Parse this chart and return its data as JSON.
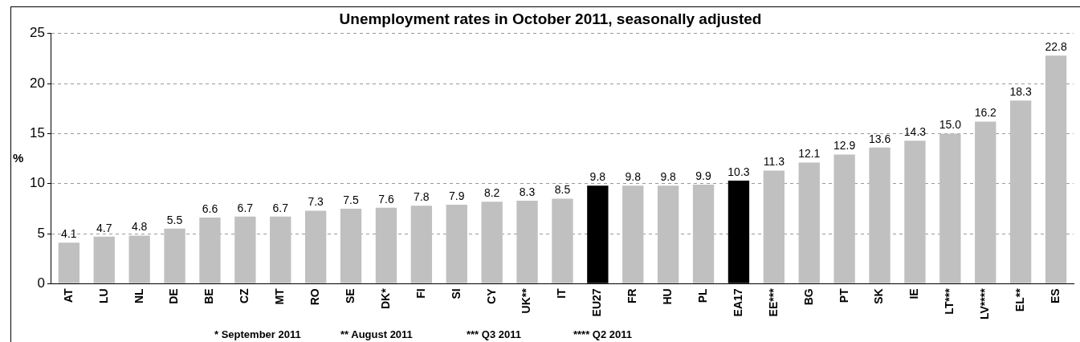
{
  "chart_data": {
    "type": "bar",
    "title": "Unemployment rates in October 2011, seasonally adjusted",
    "ylabel": "%",
    "categories": [
      "AT",
      "LU",
      "NL",
      "DE",
      "BE",
      "CZ",
      "MT",
      "RO",
      "SE",
      "DK*",
      "FI",
      "SI",
      "CY",
      "UK**",
      "IT",
      "EU27",
      "FR",
      "HU",
      "PL",
      "EA17",
      "EE***",
      "BG",
      "PT",
      "SK",
      "IE",
      "LT***",
      "LV****",
      "EL**",
      "ES"
    ],
    "values": [
      4.1,
      4.7,
      4.8,
      5.5,
      6.6,
      6.7,
      6.7,
      7.3,
      7.5,
      7.6,
      7.8,
      7.9,
      8.2,
      8.3,
      8.5,
      9.8,
      9.8,
      9.8,
      9.9,
      10.3,
      11.3,
      12.1,
      12.9,
      13.6,
      14.3,
      15.0,
      16.2,
      18.3,
      22.8
    ],
    "value_labels": [
      "4.1",
      "4.7",
      "4.8",
      "5.5",
      "6.6",
      "6.7",
      "6.7",
      "7.3",
      "7.5",
      "7.6",
      "7.8",
      "7.9",
      "8.2",
      "8.3",
      "8.5",
      "9.8",
      "9.8",
      "9.8",
      "9.9",
      "10.3",
      "11.3",
      "12.1",
      "12.9",
      "13.6",
      "14.3",
      "15.0",
      "16.2",
      "18.3",
      "22.8"
    ],
    "colors": [
      "#c0c0c0",
      "#c0c0c0",
      "#c0c0c0",
      "#c0c0c0",
      "#c0c0c0",
      "#c0c0c0",
      "#c0c0c0",
      "#c0c0c0",
      "#c0c0c0",
      "#c0c0c0",
      "#c0c0c0",
      "#c0c0c0",
      "#c0c0c0",
      "#c0c0c0",
      "#c0c0c0",
      "#000000",
      "#c0c0c0",
      "#c0c0c0",
      "#c0c0c0",
      "#000000",
      "#c0c0c0",
      "#c0c0c0",
      "#c0c0c0",
      "#c0c0c0",
      "#c0c0c0",
      "#c0c0c0",
      "#c0c0c0",
      "#c0c0c0",
      "#c0c0c0"
    ],
    "ylim": [
      0,
      25
    ],
    "yticks": [
      0,
      5,
      10,
      15,
      20,
      25
    ],
    "grid": "y",
    "legend": false,
    "annotations": [
      "* September 2011",
      "** August 2011",
      "*** Q3 2011",
      "**** Q2 2011"
    ]
  }
}
